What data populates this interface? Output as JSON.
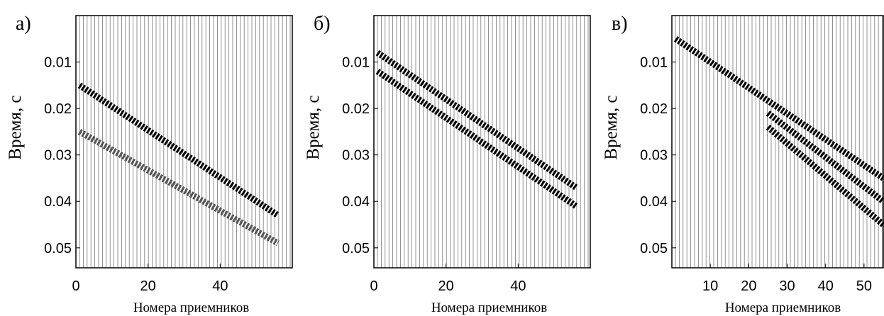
{
  "chart_data": [
    {
      "type": "seismogram",
      "panel_label": "а)",
      "ylabel": "Время, с",
      "xlabel": "Номера приемников",
      "xlim": [
        0,
        60
      ],
      "ylim": [
        0,
        0.0543
      ],
      "y_inverted": true,
      "xticks": [
        0,
        20,
        40
      ],
      "yticks": [
        0.01,
        0.02,
        0.03,
        0.04,
        0.05
      ],
      "series": [
        {
          "color": "#000000",
          "x": [
            1,
            56
          ],
          "values": [
            0.015,
            0.043
          ]
        },
        {
          "color": "#555555",
          "x": [
            1,
            56
          ],
          "values": [
            0.025,
            0.049
          ]
        }
      ]
    },
    {
      "type": "seismogram",
      "panel_label": "б)",
      "ylabel": "Время, с",
      "xlabel": "Номера приемников",
      "xlim": [
        0,
        60
      ],
      "ylim": [
        0,
        0.0543
      ],
      "y_inverted": true,
      "xticks": [
        0,
        20,
        40
      ],
      "yticks": [
        0.01,
        0.02,
        0.03,
        0.04,
        0.05
      ],
      "series": [
        {
          "color": "#000000",
          "x": [
            1,
            56
          ],
          "values": [
            0.008,
            0.037
          ]
        },
        {
          "color": "#000000",
          "x": [
            1,
            56
          ],
          "values": [
            0.012,
            0.041
          ]
        }
      ]
    },
    {
      "type": "seismogram",
      "panel_label": "в)",
      "ylabel": "Время, с",
      "xlabel": "Номера приемников",
      "xlim": [
        0,
        55
      ],
      "ylim": [
        0,
        0.0543
      ],
      "y_inverted": true,
      "xticks": [
        10,
        20,
        30,
        40,
        50
      ],
      "yticks": [
        0.01,
        0.02,
        0.03,
        0.04,
        0.05
      ],
      "series": [
        {
          "color": "#000000",
          "x": [
            1,
            55
          ],
          "values": [
            0.005,
            0.035
          ]
        },
        {
          "color": "#000000",
          "x": [
            25,
            55
          ],
          "values": [
            0.021,
            0.04
          ]
        },
        {
          "color": "#000000",
          "x": [
            25,
            55
          ],
          "values": [
            0.024,
            0.045
          ]
        }
      ]
    }
  ]
}
